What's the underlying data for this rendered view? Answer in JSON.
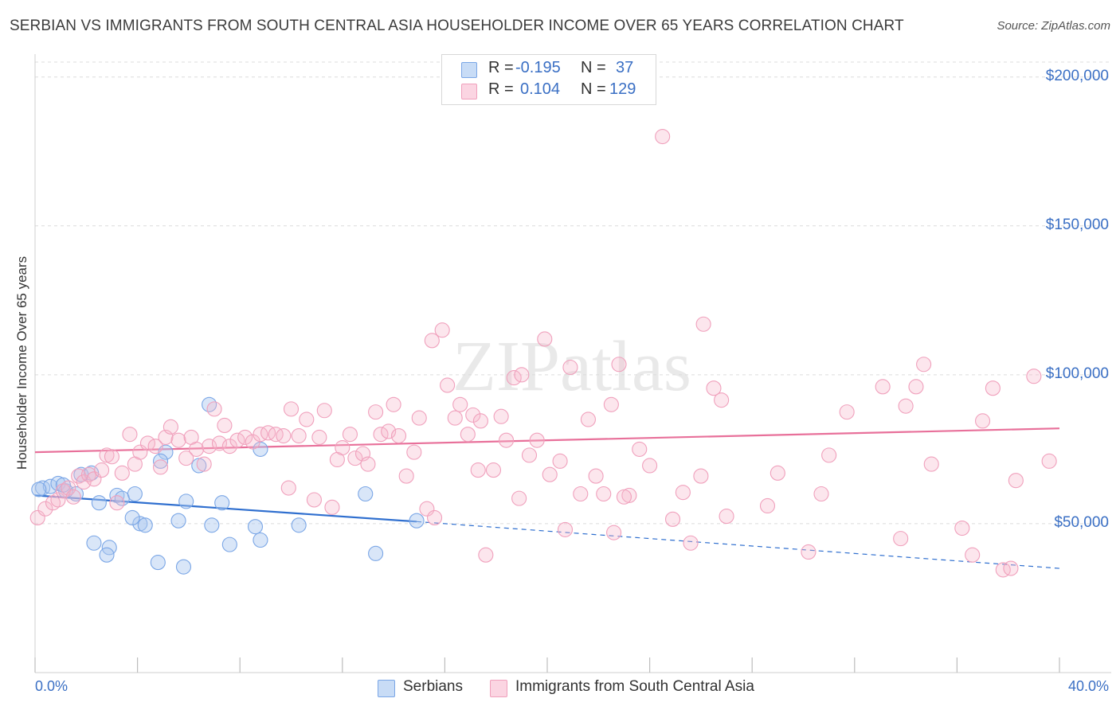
{
  "title": "SERBIAN VS IMMIGRANTS FROM SOUTH CENTRAL ASIA HOUSEHOLDER INCOME OVER 65 YEARS CORRELATION CHART",
  "source": "Source: ZipAtlas.com",
  "watermark": "ZIPatlas",
  "legend": {
    "rows": [
      {
        "r_label": "R =",
        "r_value": "-0.195",
        "n_label": "N =",
        "n_value": "37",
        "color": "#aac8f0"
      },
      {
        "r_label": "R =",
        "r_value": "0.104",
        "n_label": "N =",
        "n_value": "129",
        "color": "#f6b8cc"
      }
    ]
  },
  "bottom_legend": [
    {
      "label": "Serbians",
      "color": "#aac8f0"
    },
    {
      "label": "Immigrants from South Central Asia",
      "color": "#f6b8cc"
    }
  ],
  "chart_data": {
    "type": "scatter",
    "title": "SERBIAN VS IMMIGRANTS FROM SOUTH CENTRAL ASIA HOUSEHOLDER INCOME OVER 65 YEARS CORRELATION CHART",
    "xlabel": "",
    "ylabel": "Householder Income Over 65 years",
    "xlim": [
      0,
      40
    ],
    "ylim": [
      0,
      205000
    ],
    "x_tick_labels": [
      "0.0%",
      "40.0%"
    ],
    "y_ticks": [
      50000,
      100000,
      150000,
      200000
    ],
    "y_tick_labels": [
      "$50,000",
      "$100,000",
      "$150,000",
      "$200,000"
    ],
    "grid": true,
    "series": [
      {
        "name": "Serbians",
        "color": "#7aa6e6",
        "line_color": "#2f6fcf",
        "trend": {
          "x0": 0,
          "y0": 59500,
          "x1": 14.9,
          "y1": 50700,
          "dashed_to_x": 40,
          "dashed_to_y": 35000
        },
        "points": [
          [
            0.3,
            62000
          ],
          [
            0.6,
            62500
          ],
          [
            0.9,
            63500
          ],
          [
            1.2,
            61000
          ],
          [
            1.6,
            60000
          ],
          [
            1.8,
            66500
          ],
          [
            2.2,
            67000
          ],
          [
            2.5,
            57000
          ],
          [
            3.2,
            59500
          ],
          [
            3.4,
            58500
          ],
          [
            3.9,
            60000
          ],
          [
            4.1,
            50000
          ],
          [
            4.3,
            49500
          ],
          [
            5.1,
            74000
          ],
          [
            5.9,
            57500
          ],
          [
            6.4,
            69500
          ],
          [
            6.8,
            90000
          ],
          [
            7.3,
            57000
          ],
          [
            8.8,
            75000
          ],
          [
            4.9,
            71000
          ],
          [
            3.8,
            52000
          ],
          [
            5.6,
            51000
          ],
          [
            6.9,
            49500
          ],
          [
            8.6,
            49000
          ],
          [
            10.3,
            49500
          ],
          [
            2.3,
            43500
          ],
          [
            2.9,
            42000
          ],
          [
            2.8,
            39500
          ],
          [
            4.8,
            37000
          ],
          [
            5.8,
            35500
          ],
          [
            7.6,
            43000
          ],
          [
            8.8,
            44500
          ],
          [
            12.9,
            60000
          ],
          [
            13.3,
            40000
          ],
          [
            14.9,
            51000
          ],
          [
            0.15,
            61500
          ],
          [
            1.1,
            63000
          ]
        ]
      },
      {
        "name": "Immigrants from South Central Asia",
        "color": "#f0a0bc",
        "line_color": "#e8709a",
        "trend": {
          "x0": 0,
          "y0": 74000,
          "x1": 40,
          "y1": 82000
        },
        "points": [
          [
            0.1,
            52000
          ],
          [
            0.4,
            55000
          ],
          [
            0.7,
            57000
          ],
          [
            0.9,
            58000
          ],
          [
            1.1,
            61000
          ],
          [
            1.3,
            62000
          ],
          [
            1.5,
            59000
          ],
          [
            1.7,
            66000
          ],
          [
            1.9,
            64000
          ],
          [
            2.1,
            66500
          ],
          [
            2.3,
            65000
          ],
          [
            2.6,
            68000
          ],
          [
            2.8,
            73000
          ],
          [
            3.0,
            72500
          ],
          [
            3.2,
            57000
          ],
          [
            3.4,
            67000
          ],
          [
            3.7,
            80000
          ],
          [
            3.9,
            70000
          ],
          [
            4.1,
            74000
          ],
          [
            4.4,
            77000
          ],
          [
            4.7,
            76000
          ],
          [
            4.9,
            69000
          ],
          [
            5.1,
            79000
          ],
          [
            5.3,
            82500
          ],
          [
            5.6,
            78000
          ],
          [
            5.9,
            72000
          ],
          [
            6.1,
            79000
          ],
          [
            6.3,
            75000
          ],
          [
            6.6,
            70000
          ],
          [
            6.8,
            76000
          ],
          [
            7.0,
            88500
          ],
          [
            7.2,
            77000
          ],
          [
            7.4,
            83000
          ],
          [
            7.6,
            76000
          ],
          [
            7.9,
            78000
          ],
          [
            8.2,
            79000
          ],
          [
            8.5,
            77500
          ],
          [
            8.8,
            80000
          ],
          [
            9.1,
            80500
          ],
          [
            9.4,
            80000
          ],
          [
            9.7,
            79500
          ],
          [
            10.0,
            88500
          ],
          [
            10.3,
            79500
          ],
          [
            10.6,
            85000
          ],
          [
            10.9,
            58000
          ],
          [
            11.1,
            79000
          ],
          [
            11.3,
            88000
          ],
          [
            11.6,
            55500
          ],
          [
            11.8,
            71500
          ],
          [
            12.0,
            75500
          ],
          [
            12.3,
            80000
          ],
          [
            12.5,
            72000
          ],
          [
            12.8,
            73500
          ],
          [
            13.0,
            70000
          ],
          [
            13.3,
            87500
          ],
          [
            13.5,
            80000
          ],
          [
            13.8,
            81000
          ],
          [
            14.0,
            90000
          ],
          [
            14.2,
            79500
          ],
          [
            14.5,
            66000
          ],
          [
            14.8,
            74000
          ],
          [
            15.0,
            85500
          ],
          [
            15.3,
            55000
          ],
          [
            15.5,
            111500
          ],
          [
            15.9,
            115000
          ],
          [
            16.1,
            96500
          ],
          [
            16.4,
            85500
          ],
          [
            16.6,
            90000
          ],
          [
            16.9,
            80000
          ],
          [
            17.1,
            86500
          ],
          [
            17.4,
            84500
          ],
          [
            17.6,
            39500
          ],
          [
            17.9,
            68000
          ],
          [
            18.2,
            86000
          ],
          [
            18.4,
            78000
          ],
          [
            18.7,
            99000
          ],
          [
            19.0,
            100000
          ],
          [
            19.3,
            73000
          ],
          [
            19.6,
            78000
          ],
          [
            19.9,
            112000
          ],
          [
            20.1,
            66500
          ],
          [
            20.5,
            71000
          ],
          [
            20.9,
            102500
          ],
          [
            21.3,
            60000
          ],
          [
            21.6,
            85000
          ],
          [
            21.9,
            66000
          ],
          [
            22.2,
            60000
          ],
          [
            22.5,
            90000
          ],
          [
            22.8,
            103500
          ],
          [
            23.2,
            59500
          ],
          [
            23.6,
            75000
          ],
          [
            24.0,
            69500
          ],
          [
            24.5,
            180000
          ],
          [
            24.9,
            51500
          ],
          [
            25.3,
            60500
          ],
          [
            25.6,
            43500
          ],
          [
            26.1,
            117000
          ],
          [
            26.5,
            95500
          ],
          [
            26.8,
            91500
          ],
          [
            27.0,
            52500
          ],
          [
            28.6,
            56000
          ],
          [
            29.0,
            67000
          ],
          [
            30.2,
            40500
          ],
          [
            30.7,
            60000
          ],
          [
            31.7,
            87500
          ],
          [
            33.1,
            96000
          ],
          [
            34.0,
            89500
          ],
          [
            34.4,
            96000
          ],
          [
            34.7,
            103500
          ],
          [
            35.0,
            70000
          ],
          [
            36.2,
            48500
          ],
          [
            36.6,
            39500
          ],
          [
            37.0,
            84500
          ],
          [
            37.4,
            95500
          ],
          [
            37.8,
            34500
          ],
          [
            38.1,
            35000
          ],
          [
            38.3,
            64500
          ],
          [
            39.0,
            99500
          ],
          [
            39.6,
            71000
          ],
          [
            17.3,
            68000
          ],
          [
            9.9,
            62000
          ],
          [
            15.6,
            52000
          ],
          [
            18.9,
            58500
          ],
          [
            20.7,
            48000
          ],
          [
            23.0,
            59000
          ],
          [
            26.0,
            66000
          ],
          [
            31.0,
            73000
          ],
          [
            33.8,
            45000
          ],
          [
            22.6,
            47000
          ]
        ]
      }
    ]
  }
}
